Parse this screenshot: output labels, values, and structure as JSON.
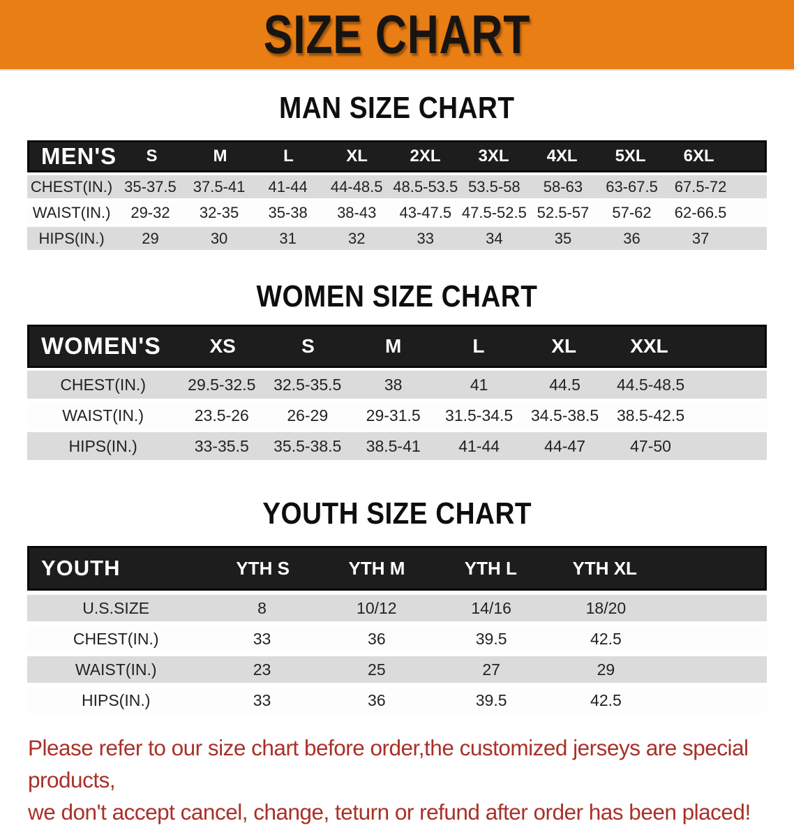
{
  "colors": {
    "banner_bg": "#E87E14",
    "banner_text": "#181411",
    "table_header_bg": "#1D1D1D",
    "table_header_text": "#FFFFFF",
    "row_gray": "#DBDBDB",
    "row_white": "#FDFDFD",
    "disclaimer_red": "#A93028"
  },
  "banner": {
    "title": "SIZE CHART"
  },
  "mens": {
    "heading": "MAN SIZE CHART",
    "corner": "MEN'S",
    "sizes": [
      "S",
      "M",
      "L",
      "XL",
      "2XL",
      "3XL",
      "4XL",
      "5XL",
      "6XL"
    ],
    "rows": [
      {
        "label": "CHEST(IN.)",
        "values": [
          "35-37.5",
          "37.5-41",
          "41-44",
          "44-48.5",
          "48.5-53.5",
          "53.5-58",
          "58-63",
          "63-67.5",
          "67.5-72"
        ]
      },
      {
        "label": "WAIST(IN.)",
        "values": [
          "29-32",
          "32-35",
          "35-38",
          "38-43",
          "43-47.5",
          "47.5-52.5",
          "52.5-57",
          "57-62",
          "62-66.5"
        ]
      },
      {
        "label": "HIPS(IN.)",
        "values": [
          "29",
          "30",
          "31",
          "32",
          "33",
          "34",
          "35",
          "36",
          "37"
        ]
      }
    ]
  },
  "womens": {
    "heading": "WOMEN SIZE CHART",
    "corner": "WOMEN'S",
    "sizes": [
      "XS",
      "S",
      "M",
      "L",
      "XL",
      "XXL"
    ],
    "rows": [
      {
        "label": "CHEST(IN.)",
        "values": [
          "29.5-32.5",
          "32.5-35.5",
          "38",
          "41",
          "44.5",
          "44.5-48.5"
        ]
      },
      {
        "label": "WAIST(IN.)",
        "values": [
          "23.5-26",
          "26-29",
          "29-31.5",
          "31.5-34.5",
          "34.5-38.5",
          "38.5-42.5"
        ]
      },
      {
        "label": "HIPS(IN.)",
        "values": [
          "33-35.5",
          "35.5-38.5",
          "38.5-41",
          "41-44",
          "44-47",
          "47-50"
        ]
      }
    ]
  },
  "youth": {
    "heading": "YOUTH SIZE CHART",
    "corner": "YOUTH",
    "sizes": [
      "YTH S",
      "YTH M",
      "YTH L",
      "YTH XL"
    ],
    "rows": [
      {
        "label": "U.S.SIZE",
        "values": [
          "8",
          "10/12",
          "14/16",
          "18/20"
        ]
      },
      {
        "label": "CHEST(IN.)",
        "values": [
          "33",
          "36",
          "39.5",
          "42.5"
        ]
      },
      {
        "label": "WAIST(IN.)",
        "values": [
          "23",
          "25",
          "27",
          "29"
        ]
      },
      {
        "label": "HIPS(IN.)",
        "values": [
          "33",
          "36",
          "39.5",
          "42.5"
        ]
      }
    ]
  },
  "disclaimer": {
    "line1": "Please refer to our size chart before order,the customized jerseys are special products,",
    "line2": "we don't accept cancel, change, teturn or refund after order has been placed!"
  }
}
